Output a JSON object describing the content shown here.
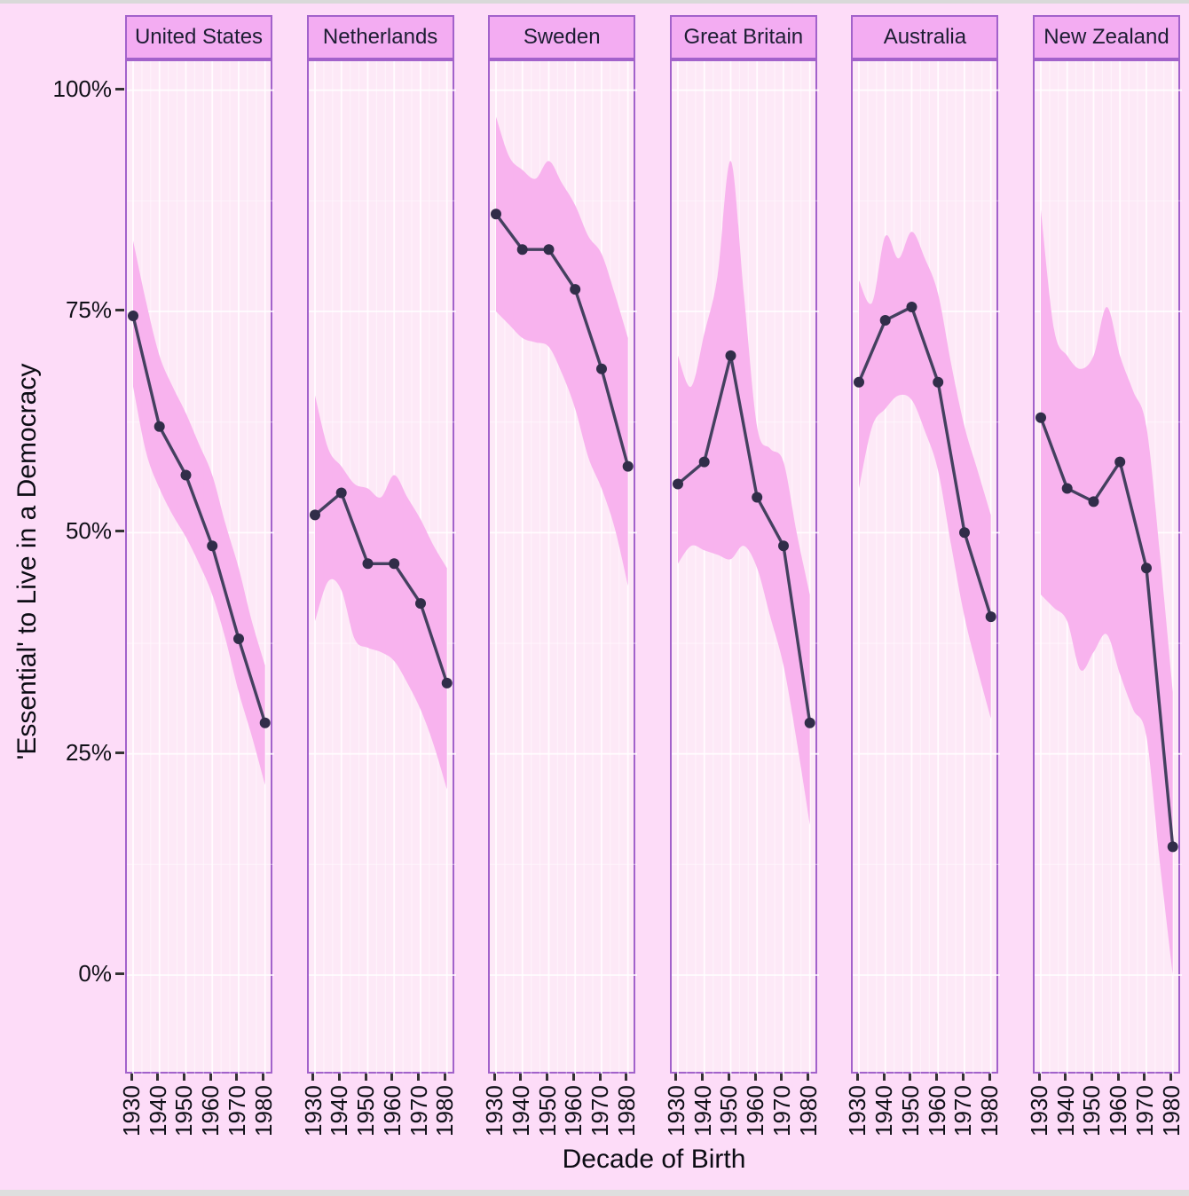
{
  "figure": {
    "y_axis_title": "'Essential' to Live in a Democracy",
    "x_axis_title": "Decade of Birth",
    "y_ticks": [
      {
        "label": "100%",
        "value": 100
      },
      {
        "label": "75%",
        "value": 75
      },
      {
        "label": "50%",
        "value": 50
      },
      {
        "label": "25%",
        "value": 25
      },
      {
        "label": "0%",
        "value": 0
      }
    ],
    "x_tick_labels": [
      "1930",
      "1940",
      "1950",
      "1960",
      "1970",
      "1980"
    ]
  },
  "chart_data": {
    "type": "line",
    "faceted": true,
    "facet_titles": [
      "United States",
      "Netherlands",
      "Sweden",
      "Great Britain",
      "Australia",
      "New Zealand"
    ],
    "xlabel": "Decade of Birth",
    "ylabel": "'Essential' to Live in a Democracy",
    "x": [
      1930,
      1940,
      1950,
      1960,
      1970,
      1980
    ],
    "ylim": [
      0,
      100
    ],
    "y_tick_values": [
      0,
      25,
      50,
      75,
      100
    ],
    "grid": "on",
    "legend": "none",
    "ci_x": [
      1930,
      1935,
      1940,
      1945,
      1950,
      1955,
      1960,
      1965,
      1970,
      1975,
      1980
    ],
    "series": [
      {
        "name": "United States",
        "values": [
          74.5,
          62,
          56.5,
          48.5,
          38,
          28.5
        ],
        "ci_upper": [
          83,
          76,
          70,
          66.5,
          63.5,
          60,
          56.5,
          51,
          46,
          40,
          35
        ],
        "ci_lower": [
          66.5,
          59,
          55,
          52,
          49.5,
          46.5,
          43,
          38,
          32,
          27,
          21.5
        ]
      },
      {
        "name": "Netherlands",
        "values": [
          52,
          54.5,
          46.5,
          46.5,
          42,
          33
        ],
        "ci_upper": [
          65.5,
          59.5,
          57.5,
          55.5,
          55,
          54,
          56.5,
          54,
          51.5,
          48.5,
          46
        ],
        "ci_lower": [
          40,
          44.5,
          43.5,
          38,
          37,
          36.5,
          35.5,
          33,
          30,
          26,
          21
        ]
      },
      {
        "name": "Sweden",
        "values": [
          86,
          82,
          82,
          77.5,
          68.5,
          57.5
        ],
        "ci_upper": [
          97,
          92.5,
          91,
          90,
          92,
          89.5,
          87,
          83.5,
          81.5,
          77,
          72
        ],
        "ci_lower": [
          75,
          73.5,
          72,
          71.5,
          71,
          68,
          64,
          58.5,
          55,
          50.5,
          44
        ]
      },
      {
        "name": "Great Britain",
        "values": [
          55.5,
          58,
          70,
          54,
          48.5,
          28.5
        ],
        "ci_upper": [
          70,
          66.5,
          72.5,
          79,
          92,
          77,
          62,
          59.5,
          58,
          50,
          43
        ],
        "ci_lower": [
          46.5,
          48.5,
          48,
          47.5,
          47,
          48.5,
          46,
          40.5,
          35,
          26.5,
          17
        ]
      },
      {
        "name": "Australia",
        "values": [
          67,
          74,
          75.5,
          67,
          50,
          40.5
        ],
        "ci_upper": [
          78.5,
          76,
          83.5,
          81,
          84,
          81,
          77,
          69,
          62,
          57,
          52
        ],
        "ci_lower": [
          55,
          62,
          64,
          65.5,
          65,
          61.5,
          57,
          48.5,
          40.5,
          34.5,
          29
        ]
      },
      {
        "name": "New Zealand",
        "values": [
          63,
          55,
          53.5,
          58,
          46,
          14.5
        ],
        "ci_upper": [
          86.5,
          73,
          70,
          68.5,
          70,
          75.5,
          70,
          66,
          62,
          48,
          32
        ],
        "ci_lower": [
          43,
          41.5,
          40,
          34.5,
          36.5,
          38.5,
          34,
          30,
          27,
          13,
          0
        ]
      }
    ]
  },
  "colors": {
    "background": "#fddcf8",
    "panel_background": "#fde9f7",
    "ribbon": "#f8b3ee",
    "line": "#44405f",
    "point": "#312d49",
    "header_fill": "#f3acf2",
    "border": "#a262cb",
    "grid_major": "rgba(255,255,255,0.85)",
    "grid_minor": "rgba(255,255,255,0.45)",
    "axis_text": "#101018",
    "edge_strip": "#d9d9d9"
  }
}
